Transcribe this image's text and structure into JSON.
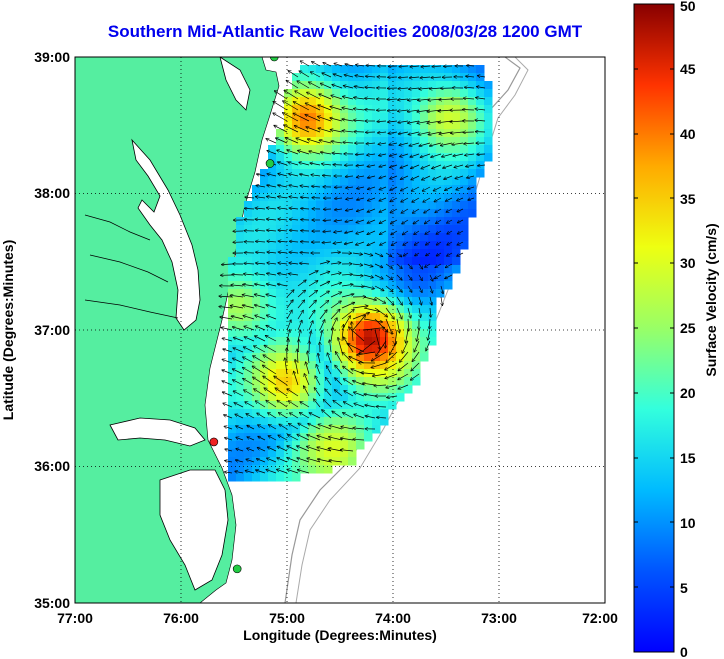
{
  "title": "Southern Mid-Atlantic Raw Velocities 2008/03/28 1200 GMT",
  "x_axis": {
    "label": "Longitude (Degrees:Minutes)",
    "ticks": [
      "77:00",
      "76:00",
      "75:00",
      "74:00",
      "73:00",
      "72:00"
    ]
  },
  "y_axis": {
    "label": "Latitude (Degrees:Minutes)",
    "ticks": [
      "35:00",
      "36:00",
      "37:00",
      "38:00",
      "39:00"
    ]
  },
  "colorbar": {
    "label": "Surface Velocity (cm/s)",
    "ticks": [
      "0",
      "5",
      "10",
      "15",
      "20",
      "25",
      "30",
      "35",
      "40",
      "45",
      "50"
    ],
    "range": [
      0,
      50
    ]
  },
  "map": {
    "lon_range": [
      -77,
      -72
    ],
    "lat_range": [
      35,
      39
    ],
    "land_color": "#55eea0",
    "water_color": "#ffffff",
    "gridlines": "dotted",
    "sites": [
      {
        "lon": -75.12,
        "lat": 39.0,
        "color": "#22cc44"
      },
      {
        "lon": -75.16,
        "lat": 38.22,
        "color": "#22cc44"
      },
      {
        "lon": -75.69,
        "lat": 36.18,
        "color": "#ee2222"
      },
      {
        "lon": -75.47,
        "lat": 35.25,
        "color": "#22cc44"
      }
    ],
    "hotspots": [
      {
        "lon": -74.25,
        "lat": 36.96,
        "speed": 48
      },
      {
        "lon": -75.05,
        "lat": 36.65,
        "speed": 35
      },
      {
        "lon": -74.85,
        "lat": 38.58,
        "speed": 40
      },
      {
        "lon": -73.5,
        "lat": 38.58,
        "speed": 32
      },
      {
        "lon": -75.5,
        "lat": 37.2,
        "speed": 26
      },
      {
        "lon": -74.6,
        "lat": 36.15,
        "speed": 30
      }
    ]
  }
}
